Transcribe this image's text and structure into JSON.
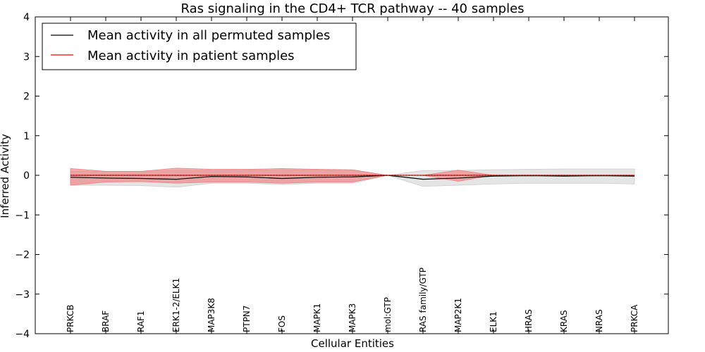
{
  "chart_data": {
    "type": "line",
    "title": "Ras signaling in the CD4+ TCR pathway -- 40 samples",
    "xlabel": "Cellular Entities",
    "ylabel": "Inferred Activity",
    "ylim": [
      -4,
      4
    ],
    "yticks": [
      4,
      3,
      2,
      1,
      0,
      -1,
      -2,
      -3,
      -4
    ],
    "ytick_labels": [
      "4",
      "3",
      "2",
      "1",
      "0",
      "−1",
      "−2",
      "−3",
      "−4"
    ],
    "categories": [
      "PRKCB",
      "BRAF",
      "RAF1",
      "ERK1-2/ELK1",
      "MAP3K8",
      "PTPN7",
      "FOS",
      "MAPK1",
      "MAPK3",
      "mol:GTP",
      "RAS family/GTP",
      "MAP2K1",
      "ELK1",
      "HRAS",
      "KRAS",
      "NRAS",
      "PRKCA"
    ],
    "legend_position": "top-left",
    "series": [
      {
        "name": "Mean activity in all permuted samples",
        "color": "#000000",
        "values": [
          -0.05,
          -0.07,
          -0.08,
          -0.1,
          -0.03,
          -0.04,
          -0.08,
          -0.05,
          -0.04,
          0.0,
          -0.1,
          -0.07,
          -0.02,
          -0.01,
          -0.02,
          -0.01,
          -0.02
        ],
        "band_lower": [
          -0.25,
          -0.25,
          -0.26,
          -0.3,
          -0.2,
          -0.2,
          -0.23,
          -0.2,
          -0.2,
          0.0,
          -0.28,
          -0.25,
          -0.22,
          -0.2,
          -0.2,
          -0.2,
          -0.22
        ],
        "band_upper": [
          0.1,
          0.1,
          0.1,
          0.12,
          0.12,
          0.13,
          0.13,
          0.13,
          0.13,
          0.0,
          0.12,
          0.12,
          0.14,
          0.15,
          0.16,
          0.16,
          0.16
        ],
        "band_color": "#cccccc"
      },
      {
        "name": "Mean activity in patient samples",
        "color": "#ff0000",
        "values": [
          0.0,
          0.0,
          0.0,
          0.0,
          0.0,
          0.0,
          0.0,
          0.0,
          0.0,
          0.0,
          0.0,
          0.0,
          0.0,
          0.0,
          0.0,
          0.0,
          0.0
        ],
        "band_lower": [
          -0.25,
          -0.17,
          -0.16,
          -0.2,
          -0.17,
          -0.17,
          -0.2,
          -0.17,
          -0.17,
          0.0,
          0.0,
          -0.15,
          0.0,
          0.0,
          0.0,
          0.0,
          0.0
        ],
        "band_upper": [
          0.17,
          0.1,
          0.1,
          0.18,
          0.15,
          0.15,
          0.17,
          0.15,
          0.14,
          0.0,
          0.0,
          0.13,
          0.0,
          0.0,
          0.0,
          0.0,
          0.0
        ],
        "band_color": "#f08080"
      }
    ]
  }
}
